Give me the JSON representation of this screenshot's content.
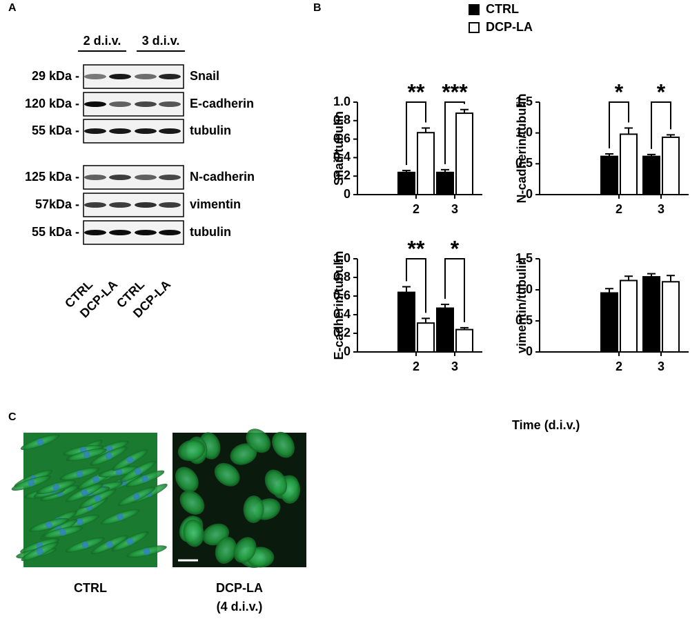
{
  "panel_labels": [
    "A",
    "B",
    "C"
  ],
  "blot": {
    "groups": [
      "2 d.i.v.",
      "3 d.i.v."
    ],
    "rows": [
      {
        "mw": "29 kDa -",
        "protein": "Snail"
      },
      {
        "mw": "120 kDa -",
        "protein": "E-cadherin"
      },
      {
        "mw": "55 kDa -",
        "protein": "tubulin"
      },
      {
        "mw": "125 kDa -",
        "protein": "N-cadherin"
      },
      {
        "mw": "57kDa -",
        "protein": "vimentin"
      },
      {
        "mw": "55 kDa -",
        "protein": "tubulin"
      }
    ],
    "lanes": [
      "CTRL",
      "DCP-LA",
      "CTRL",
      "DCP-LA"
    ]
  },
  "charts_xlabel": "Time (d.i.v.)",
  "chart_data": [
    {
      "type": "bar",
      "ylabel": "Snail/tubulin",
      "categories": [
        "2",
        "3"
      ],
      "series": [
        {
          "name": "CTRL",
          "color": "#000000",
          "values": [
            0.24,
            0.24
          ],
          "errors": [
            0.02,
            0.03
          ]
        },
        {
          "name": "DCP-LA",
          "color": "#ffffff",
          "values": [
            0.67,
            0.88
          ],
          "errors": [
            0.05,
            0.04
          ]
        }
      ],
      "significance": [
        "**",
        "***"
      ],
      "ylim": [
        0,
        1
      ],
      "yticks": [
        0,
        0.2,
        0.4,
        0.6,
        0.8,
        {
          "value": 1,
          "label": "1.0"
        }
      ]
    },
    {
      "type": "bar",
      "ylabel": "N-cadherin/tubulin",
      "categories": [
        "2",
        "3"
      ],
      "series": [
        {
          "name": "CTRL",
          "color": "#000000",
          "values": [
            0.62,
            0.62
          ],
          "errors": [
            0.04,
            0.03
          ]
        },
        {
          "name": "DCP-LA",
          "color": "#ffffff",
          "values": [
            0.98,
            0.93
          ],
          "errors": [
            0.1,
            0.04
          ]
        }
      ],
      "significance": [
        "*",
        "*"
      ],
      "ylim": [
        0,
        1.5
      ],
      "yticks": [
        0,
        0.5,
        {
          "value": 1,
          "label": "1.0"
        },
        1.5
      ]
    },
    {
      "type": "bar",
      "ylabel": "E-cadherin/tubulin",
      "categories": [
        "2",
        "3"
      ],
      "series": [
        {
          "name": "CTRL",
          "color": "#000000",
          "values": [
            0.64,
            0.47
          ],
          "errors": [
            0.06,
            0.04
          ]
        },
        {
          "name": "DCP-LA",
          "color": "#ffffff",
          "values": [
            0.31,
            0.24
          ],
          "errors": [
            0.05,
            0.02
          ]
        }
      ],
      "significance": [
        "**",
        "*"
      ],
      "ylim": [
        0,
        1
      ],
      "yticks": [
        0,
        0.2,
        0.4,
        0.6,
        0.8,
        {
          "value": 1,
          "label": "1.0"
        }
      ]
    },
    {
      "type": "bar",
      "ylabel": "vimentin/tubulin",
      "categories": [
        "2",
        "3"
      ],
      "series": [
        {
          "name": "CTRL",
          "color": "#000000",
          "values": [
            0.95,
            1.21
          ],
          "errors": [
            0.07,
            0.05
          ]
        },
        {
          "name": "DCP-LA",
          "color": "#ffffff",
          "values": [
            1.15,
            1.13
          ],
          "errors": [
            0.07,
            0.1
          ]
        }
      ],
      "ylim": [
        0,
        1.5
      ],
      "yticks": [
        0,
        0.5,
        {
          "value": 1,
          "label": "1.0"
        },
        1.5
      ]
    }
  ],
  "images": {
    "captions": [
      [
        "CTRL"
      ],
      [
        "DCP-LA",
        "(4 d.i.v.)"
      ]
    ]
  }
}
